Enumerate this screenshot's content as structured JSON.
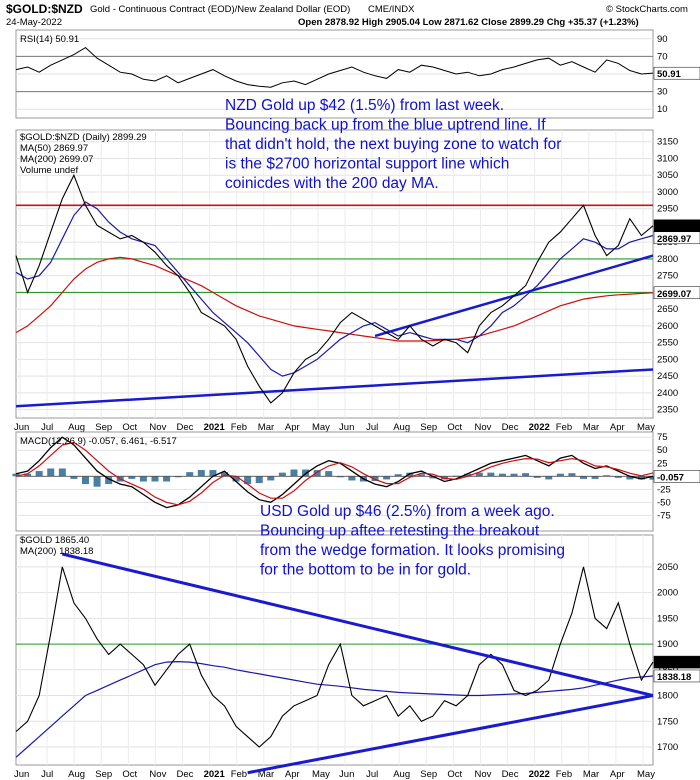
{
  "header": {
    "symbol": "$GOLD:$NZD",
    "description": "Gold - Continuous Contract (EOD)/New Zealand Dollar (EOD)",
    "exchange": "CME/INDX",
    "date": "24-May-2022",
    "ohlc": "Open 2878.92  High 2905.04  Low 2871.62  Close 2899.29  Chg +35.37 (+1.23%)",
    "copyright": "© StockCharts.com"
  },
  "colors": {
    "price": "#000000",
    "ma50": "#1a1aa8",
    "ma200": "#cc1010",
    "trendline": "#1a1ad0",
    "resistance": "#cc1010",
    "support": "#2a9a2a",
    "macd_hist": "#1c5f8f",
    "signal": "#cc1010",
    "rsi_overbought": "#2f8a2f",
    "rsi_oversold": "#7b2ea0",
    "annotation": "#1010d0"
  },
  "annotations": {
    "nzd_note": [
      "NZD Gold up $42 (1.5%) from last week.",
      "Bouncing back up from the blue uptrend line. If",
      "that didn't hold, the next buying zone to watch for",
      "is the $2700 horizontal support line which",
      "coinicdes with the 200 day MA."
    ],
    "usd_note": [
      "USD Gold up $46 (2.5%) from a week ago.",
      "Bouncing up aftee retesting the breakout",
      "from the wedge formation. It looks promising",
      "for the bottom to be in for gold."
    ]
  },
  "chart_data": [
    {
      "type": "line",
      "panel": "rsi",
      "legend": "RSI(14) 50.91",
      "last_value": "50.91",
      "ylim": [
        0,
        100
      ],
      "ticks": [
        "90",
        "70",
        "50",
        "30",
        "10"
      ],
      "guide_levels": [
        70,
        30
      ],
      "values": [
        55,
        58,
        52,
        60,
        66,
        72,
        80,
        68,
        60,
        52,
        50,
        44,
        42,
        48,
        40,
        45,
        50,
        55,
        48,
        42,
        38,
        36,
        35,
        40,
        42,
        38,
        44,
        50,
        54,
        58,
        52,
        48,
        45,
        55,
        52,
        60,
        58,
        54,
        50,
        52,
        48,
        50,
        55,
        58,
        62,
        66,
        68,
        60,
        64,
        58,
        52,
        66,
        62,
        54,
        50,
        51
      ]
    },
    {
      "type": "line",
      "panel": "gold_nzd",
      "legend": [
        "$GOLD:$NZD (Daily) 2899.29",
        "MA(50) 2869.97",
        "MA(200) 2699.07",
        "Volume undef"
      ],
      "value_labels": [
        "2899.29",
        "2869.97",
        "2699.07"
      ],
      "ylim": [
        2325,
        3185
      ],
      "ticks": [
        "3150",
        "3100",
        "3050",
        "3000",
        "2950",
        "2900",
        "2850",
        "2800",
        "2750",
        "2700",
        "2650",
        "2600",
        "2550",
        "2500",
        "2450",
        "2400",
        "2350"
      ],
      "x_labels": [
        "Jun",
        "Jul",
        "Aug",
        "Sep",
        "Oct",
        "Nov",
        "Dec",
        "2021",
        "Feb",
        "Mar",
        "Apr",
        "May",
        "Jun",
        "Jul",
        "Aug",
        "Sep",
        "Oct",
        "Nov",
        "Dec",
        "2022",
        "Feb",
        "Mar",
        "Apr",
        "May"
      ],
      "series": [
        {
          "values": [
            2810,
            2700,
            2780,
            2880,
            2980,
            3050,
            2960,
            2900,
            2880,
            2860,
            2870,
            2850,
            2820,
            2780,
            2750,
            2700,
            2640,
            2620,
            2600,
            2560,
            2480,
            2420,
            2370,
            2400,
            2460,
            2500,
            2520,
            2560,
            2610,
            2640,
            2620,
            2600,
            2580,
            2560,
            2600,
            2560,
            2540,
            2560,
            2550,
            2520,
            2600,
            2640,
            2660,
            2690,
            2720,
            2790,
            2850,
            2880,
            2920,
            2960,
            2870,
            2810,
            2840,
            2920,
            2870,
            2899
          ]
        },
        {
          "values": [
            2760,
            2740,
            2750,
            2790,
            2860,
            2930,
            2970,
            2950,
            2910,
            2880,
            2860,
            2850,
            2840,
            2800,
            2760,
            2720,
            2680,
            2640,
            2610,
            2580,
            2550,
            2510,
            2470,
            2450,
            2460,
            2480,
            2500,
            2530,
            2560,
            2580,
            2600,
            2610,
            2590,
            2570,
            2580,
            2570,
            2560,
            2560,
            2560,
            2550,
            2570,
            2600,
            2640,
            2660,
            2690,
            2720,
            2760,
            2800,
            2830,
            2860,
            2850,
            2830,
            2830,
            2850,
            2860,
            2870
          ]
        },
        {
          "values": [
            2580,
            2600,
            2630,
            2660,
            2700,
            2740,
            2770,
            2790,
            2800,
            2805,
            2800,
            2790,
            2780,
            2765,
            2750,
            2735,
            2720,
            2700,
            2680,
            2660,
            2645,
            2630,
            2620,
            2610,
            2600,
            2595,
            2590,
            2585,
            2580,
            2575,
            2570,
            2565,
            2560,
            2555,
            2555,
            2555,
            2556,
            2558,
            2560,
            2565,
            2570,
            2580,
            2590,
            2600,
            2615,
            2630,
            2645,
            2660,
            2670,
            2680,
            2685,
            2690,
            2693,
            2695,
            2697,
            2699
          ]
        }
      ],
      "levels": [
        2960,
        2800,
        2700
      ],
      "trendlines": [
        [
          [
            0,
            2360
          ],
          [
            55,
            2470
          ]
        ],
        [
          [
            31,
            2570
          ],
          [
            55,
            2810
          ]
        ]
      ]
    },
    {
      "type": "line",
      "panel": "macd",
      "legend": "MACD(12,26,9) -0.057, 6.461, -6.517",
      "last_value": "-0.057",
      "ylim": [
        -105,
        85
      ],
      "ticks": [
        "75",
        "50",
        "25",
        "0",
        "-25",
        "-50",
        "-75"
      ],
      "series": [
        {
          "values": [
            5,
            10,
            30,
            55,
            75,
            60,
            35,
            10,
            -5,
            -15,
            -20,
            -35,
            -50,
            -60,
            -55,
            -40,
            -20,
            0,
            10,
            -10,
            -30,
            -45,
            -50,
            -35,
            -15,
            5,
            20,
            30,
            25,
            10,
            -5,
            -15,
            -20,
            -10,
            5,
            10,
            0,
            -10,
            -5,
            5,
            15,
            25,
            30,
            35,
            40,
            30,
            20,
            35,
            40,
            25,
            15,
            20,
            10,
            0,
            -5,
            -0.057
          ]
        },
        {
          "values": [
            0,
            5,
            20,
            40,
            60,
            65,
            50,
            30,
            10,
            -5,
            -15,
            -25,
            -40,
            -50,
            -55,
            -48,
            -32,
            -12,
            2,
            0,
            -15,
            -32,
            -42,
            -42,
            -28,
            -8,
            8,
            20,
            26,
            18,
            5,
            -6,
            -14,
            -14,
            -2,
            6,
            4,
            -4,
            -6,
            0,
            8,
            18,
            25,
            30,
            34,
            33,
            26,
            30,
            34,
            30,
            20,
            18,
            13,
            6,
            1,
            6.461
          ]
        }
      ]
    },
    {
      "type": "line",
      "panel": "gold_usd",
      "legend": [
        "$GOLD 1865.40",
        "MA(200) 1838.18"
      ],
      "value_labels": [
        "1865.40",
        "1838.18"
      ],
      "ylim": [
        1665,
        2112
      ],
      "ticks": [
        "2050",
        "2000",
        "1950",
        "1900",
        "1850",
        "1800",
        "1750",
        "1700"
      ],
      "x_labels": [
        "Jun",
        "Jul",
        "Aug",
        "Sep",
        "Oct",
        "Nov",
        "Dec",
        "2021",
        "Feb",
        "Mar",
        "Apr",
        "May",
        "Jun",
        "Jul",
        "Aug",
        "Sep",
        "Oct",
        "Nov",
        "Dec",
        "2022",
        "Feb",
        "Mar",
        "Apr",
        "May"
      ],
      "series": [
        {
          "values": [
            1730,
            1750,
            1800,
            1920,
            2050,
            1980,
            1950,
            1910,
            1880,
            1900,
            1880,
            1860,
            1820,
            1850,
            1880,
            1900,
            1840,
            1800,
            1780,
            1740,
            1720,
            1700,
            1720,
            1760,
            1780,
            1790,
            1800,
            1860,
            1900,
            1800,
            1780,
            1790,
            1800,
            1760,
            1780,
            1750,
            1760,
            1790,
            1780,
            1800,
            1860,
            1880,
            1860,
            1810,
            1800,
            1810,
            1830,
            1900,
            1960,
            2050,
            1950,
            1930,
            1980,
            1900,
            1830,
            1865
          ]
        },
        {
          "values": [
            1680,
            1700,
            1720,
            1740,
            1760,
            1780,
            1800,
            1810,
            1820,
            1830,
            1840,
            1850,
            1860,
            1865,
            1866,
            1865,
            1862,
            1858,
            1855,
            1850,
            1846,
            1842,
            1838,
            1834,
            1830,
            1826,
            1822,
            1820,
            1818,
            1815,
            1812,
            1810,
            1808,
            1806,
            1805,
            1804,
            1803,
            1802,
            1801,
            1800,
            1800,
            1801,
            1802,
            1803,
            1804,
            1806,
            1808,
            1810,
            1812,
            1815,
            1820,
            1825,
            1830,
            1834,
            1836,
            1838
          ]
        }
      ],
      "trendlines": [
        [
          [
            4,
            2075
          ],
          [
            55,
            1800
          ]
        ],
        [
          [
            20,
            1650
          ],
          [
            55,
            1800
          ]
        ]
      ],
      "levels": [
        1900
      ]
    }
  ]
}
